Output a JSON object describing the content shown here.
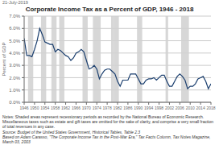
{
  "chart_data": {
    "type": "line",
    "title": "Corporate Income Tax as a Percent of GDP, 1946 - 2018",
    "y_label": "Percent of GDP",
    "annotations": [
      "21-July-2019",
      "Notes: Shaded areas represent recessionary periods as recorded by the National Bureau of Economic Research. Miscellaneous taxes such as estate and gift taxes are omitted for the sake of clarity, and comprise a very small fraction of total revenues in any case.",
      "Source: Budget of the United States Government, Historical Tables, Table 2.3",
      "Based on Adam Carasso, \"The Corporate Income Tax in the Post-War Era,\" Tax Facts Column, Tax Notes Magazine, March 03, 2003"
    ],
    "color": "#1a3e6e",
    "grid": "y",
    "xlim": [
      1946,
      2018
    ],
    "xticks": [
      1946,
      1950,
      1954,
      1958,
      1962,
      1966,
      1970,
      1974,
      1978,
      1982,
      1986,
      1990,
      1994,
      1998,
      2002,
      2006,
      2010,
      2014,
      2018
    ],
    "ylim": [
      0.0,
      0.07
    ],
    "yticks": [
      {
        "value": 0.0,
        "label": "0.0%"
      },
      {
        "value": 0.01,
        "label": "1.0%"
      },
      {
        "value": 0.02,
        "label": "2.0%"
      },
      {
        "value": 0.03,
        "label": "3.0%"
      },
      {
        "value": 0.04,
        "label": "4.0%"
      },
      {
        "value": 0.05,
        "label": "5.0%"
      },
      {
        "value": 0.06,
        "label": "6.0%"
      },
      {
        "value": 0.07,
        "label": "7.0%"
      }
    ],
    "recessions": {
      "color": "#d0d0d0",
      "periods": [
        [
          1947.5,
          1949.5
        ],
        [
          1952.5,
          1954.5
        ],
        [
          1956.5,
          1958.5
        ],
        [
          1959.5,
          1961.5
        ],
        [
          1968.5,
          1970.5
        ],
        [
          1972.5,
          1975.5
        ],
        [
          1979.5,
          1980.5
        ],
        [
          1980.5,
          1982.5
        ],
        [
          1989.5,
          1991.5
        ],
        [
          2000.5,
          2001.5
        ],
        [
          2006.5,
          2009.5
        ]
      ]
    },
    "x": [
      1946,
      1947,
      1948,
      1949,
      1950,
      1951,
      1952,
      1953,
      1954,
      1955,
      1956,
      1957,
      1958,
      1959,
      1960,
      1961,
      1962,
      1963,
      1964,
      1965,
      1966,
      1967,
      1968,
      1969,
      1970,
      1971,
      1972,
      1973,
      1974,
      1975,
      1976,
      1977,
      1978,
      1979,
      1980,
      1981,
      1982,
      1983,
      1984,
      1985,
      1986,
      1987,
      1988,
      1989,
      1990,
      1991,
      1992,
      1993,
      1994,
      1995,
      1996,
      1997,
      1998,
      1999,
      2000,
      2001,
      2002,
      2003,
      2004,
      2005,
      2006,
      2007,
      2008,
      2009,
      2010,
      2011,
      2012,
      2013,
      2014,
      2015,
      2016,
      2017,
      2018
    ],
    "values": [
      0.052,
      0.038,
      0.038,
      0.037,
      0.043,
      0.05,
      0.06,
      0.055,
      0.049,
      0.048,
      0.047,
      0.047,
      0.041,
      0.043,
      0.042,
      0.04,
      0.038,
      0.037,
      0.034,
      0.036,
      0.04,
      0.041,
      0.043,
      0.041,
      0.034,
      0.027,
      0.028,
      0.03,
      0.027,
      0.019,
      0.023,
      0.026,
      0.027,
      0.027,
      0.025,
      0.023,
      0.017,
      0.013,
      0.018,
      0.018,
      0.018,
      0.023,
      0.023,
      0.023,
      0.019,
      0.015,
      0.015,
      0.018,
      0.019,
      0.019,
      0.02,
      0.018,
      0.02,
      0.022,
      0.022,
      0.017,
      0.013,
      0.013,
      0.017,
      0.021,
      0.023,
      0.021,
      0.018,
      0.011,
      0.013,
      0.013,
      0.015,
      0.019,
      0.02,
      0.021,
      0.017,
      0.011,
      0.015
    ]
  }
}
